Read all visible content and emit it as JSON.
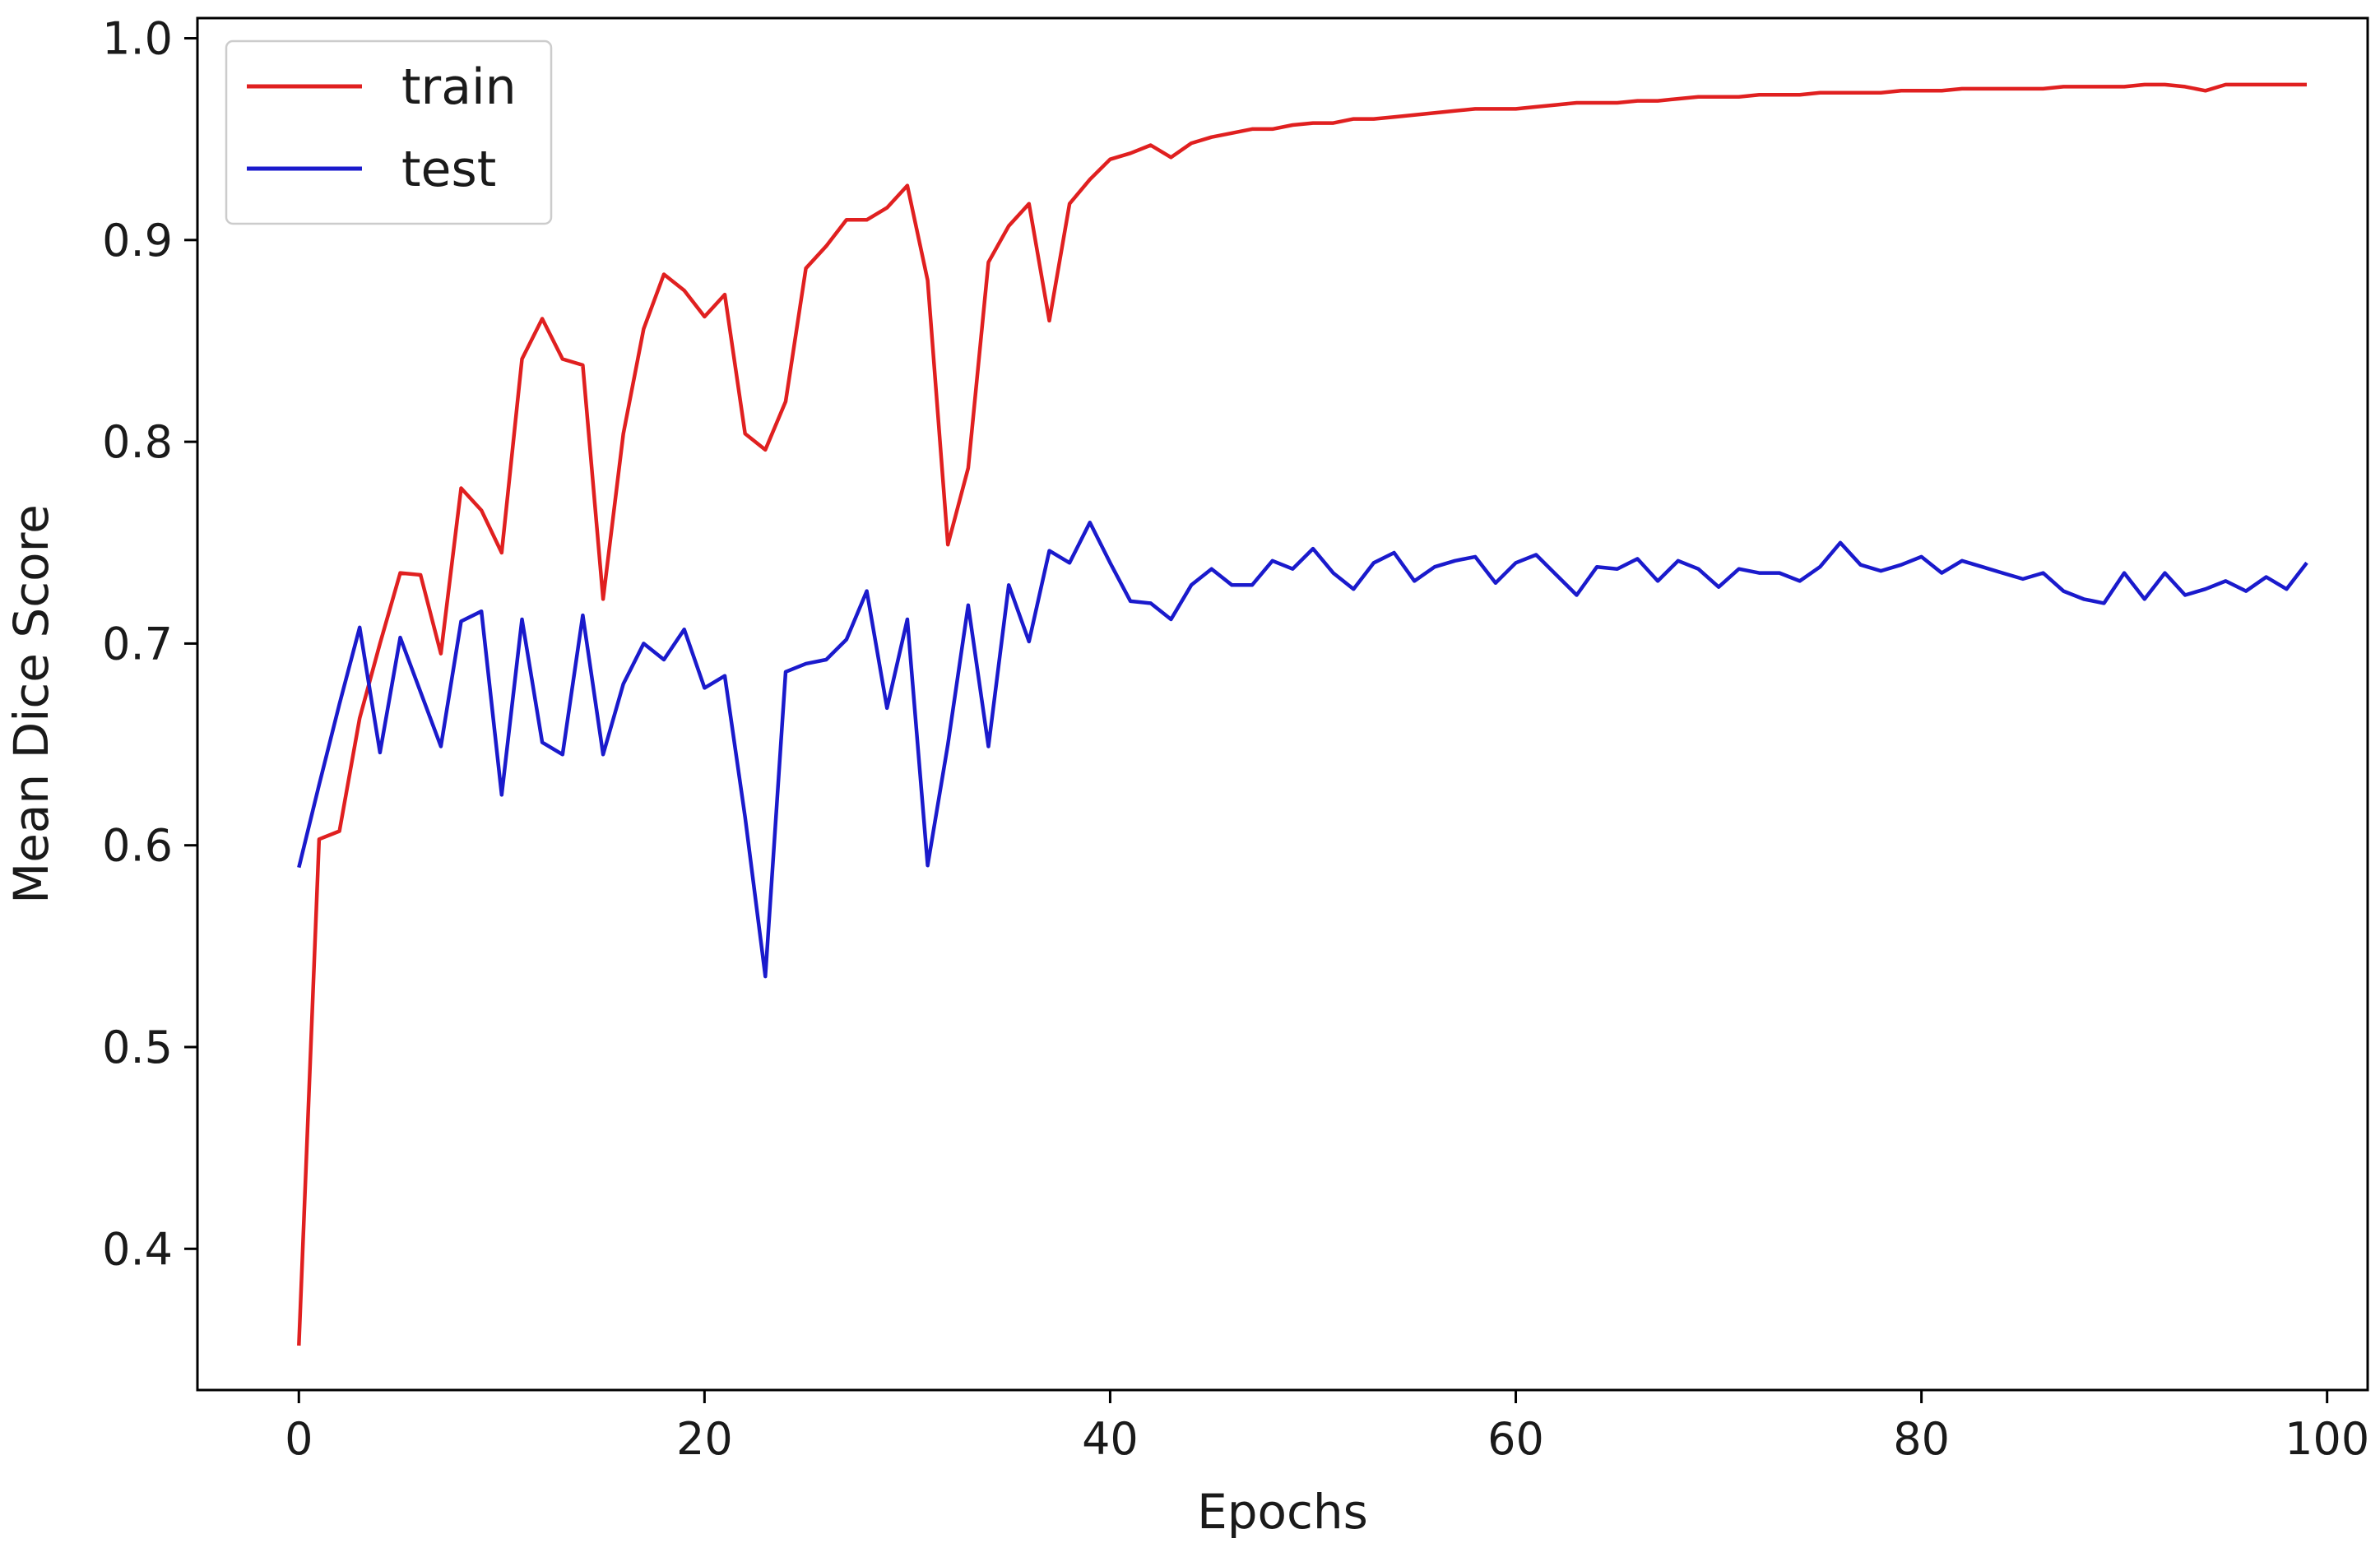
{
  "chart_data": {
    "type": "line",
    "title": "",
    "xlabel": "Epochs",
    "ylabel": "Mean Dice Score",
    "xlim": [
      -5,
      102
    ],
    "ylim": [
      0.33,
      1.01
    ],
    "x_ticks": [
      0,
      20,
      40,
      60,
      80,
      100
    ],
    "y_ticks": [
      0.4,
      0.5,
      0.6,
      0.7,
      0.8,
      0.9,
      1.0
    ],
    "x_tick_labels": [
      "0",
      "20",
      "40",
      "60",
      "80",
      "100"
    ],
    "y_tick_labels": [
      "0.4",
      "0.5",
      "0.6",
      "0.7",
      "0.8",
      "0.9",
      "1.0"
    ],
    "grid": false,
    "legend_position": "top-left",
    "x": [
      0,
      1,
      2,
      3,
      4,
      5,
      6,
      7,
      8,
      9,
      10,
      11,
      12,
      13,
      14,
      15,
      16,
      17,
      18,
      19,
      20,
      21,
      22,
      23,
      24,
      25,
      26,
      27,
      28,
      29,
      30,
      31,
      32,
      33,
      34,
      35,
      36,
      37,
      38,
      39,
      40,
      41,
      42,
      43,
      44,
      45,
      46,
      47,
      48,
      49,
      50,
      51,
      52,
      53,
      54,
      55,
      56,
      57,
      58,
      59,
      60,
      61,
      62,
      63,
      64,
      65,
      66,
      67,
      68,
      69,
      70,
      71,
      72,
      73,
      74,
      75,
      76,
      77,
      78,
      79,
      80,
      81,
      82,
      83,
      84,
      85,
      86,
      87,
      88,
      89,
      90,
      91,
      92,
      93,
      94,
      95,
      96,
      97,
      98,
      99
    ],
    "series": [
      {
        "name": "train",
        "color": "#e02020",
        "values": [
          0.352,
          0.603,
          0.607,
          0.663,
          0.7,
          0.735,
          0.734,
          0.695,
          0.777,
          0.766,
          0.745,
          0.841,
          0.861,
          0.841,
          0.838,
          0.722,
          0.804,
          0.856,
          0.883,
          0.875,
          0.862,
          0.873,
          0.804,
          0.796,
          0.82,
          0.886,
          0.897,
          0.91,
          0.91,
          0.916,
          0.927,
          0.88,
          0.749,
          0.787,
          0.889,
          0.907,
          0.918,
          0.86,
          0.918,
          0.93,
          0.94,
          0.943,
          0.947,
          0.941,
          0.948,
          0.951,
          0.953,
          0.955,
          0.955,
          0.957,
          0.958,
          0.958,
          0.96,
          0.96,
          0.961,
          0.962,
          0.963,
          0.964,
          0.965,
          0.965,
          0.965,
          0.966,
          0.967,
          0.968,
          0.968,
          0.968,
          0.969,
          0.969,
          0.97,
          0.971,
          0.971,
          0.971,
          0.972,
          0.972,
          0.972,
          0.973,
          0.973,
          0.973,
          0.973,
          0.974,
          0.974,
          0.974,
          0.975,
          0.975,
          0.975,
          0.975,
          0.975,
          0.976,
          0.976,
          0.976,
          0.976,
          0.977,
          0.977,
          0.976,
          0.974,
          0.977,
          0.977,
          0.977,
          0.977,
          0.977
        ]
      },
      {
        "name": "test",
        "color": "#1a1acc",
        "values": [
          0.589,
          0.63,
          0.67,
          0.708,
          0.646,
          0.703,
          0.676,
          0.649,
          0.711,
          0.716,
          0.625,
          0.712,
          0.651,
          0.645,
          0.714,
          0.645,
          0.68,
          0.7,
          0.692,
          0.707,
          0.678,
          0.684,
          0.614,
          0.535,
          0.686,
          0.69,
          0.692,
          0.702,
          0.726,
          0.668,
          0.712,
          0.59,
          0.65,
          0.719,
          0.649,
          0.729,
          0.701,
          0.746,
          0.74,
          0.76,
          0.74,
          0.721,
          0.72,
          0.712,
          0.729,
          0.737,
          0.729,
          0.729,
          0.741,
          0.737,
          0.747,
          0.735,
          0.727,
          0.74,
          0.745,
          0.731,
          0.738,
          0.741,
          0.743,
          0.73,
          0.74,
          0.744,
          0.734,
          0.724,
          0.738,
          0.737,
          0.742,
          0.731,
          0.741,
          0.737,
          0.728,
          0.737,
          0.735,
          0.735,
          0.731,
          0.738,
          0.75,
          0.739,
          0.736,
          0.739,
          0.743,
          0.735,
          0.741,
          0.738,
          0.735,
          0.732,
          0.735,
          0.726,
          0.722,
          0.72,
          0.735,
          0.722,
          0.735,
          0.724,
          0.727,
          0.731,
          0.726,
          0.733,
          0.727,
          0.74
        ]
      }
    ]
  }
}
